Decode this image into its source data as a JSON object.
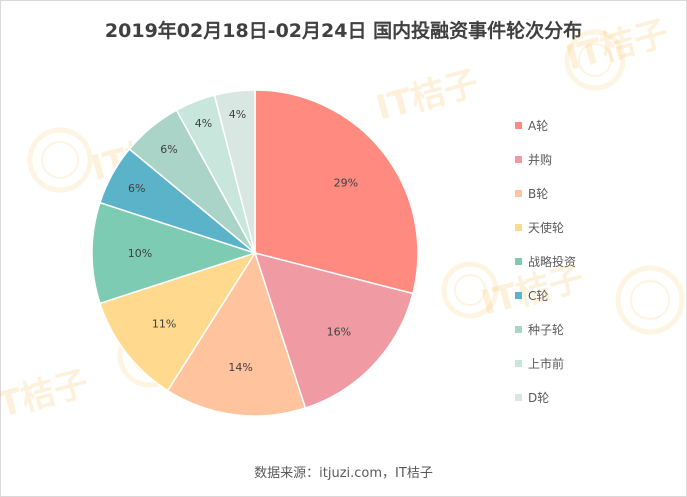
{
  "chart_data": {
    "type": "pie",
    "title": "2019年02月18日-02月24日  国内投融资事件轮次分布",
    "categories": [
      "A轮",
      "并购",
      "B轮",
      "天使轮",
      "战略投资",
      "C轮",
      "种子轮",
      "上市前",
      "D轮"
    ],
    "values": [
      29,
      16,
      14,
      11,
      10,
      6,
      6,
      4,
      4
    ],
    "value_labels": [
      "29%",
      "16%",
      "14%",
      "11%",
      "10%",
      "6%",
      "6%",
      "4%",
      "4%"
    ],
    "colors": [
      "#FF8A80",
      "#F09BA4",
      "#FFC39E",
      "#FFD98E",
      "#7ECBB4",
      "#5BB3C9",
      "#A9D4C7",
      "#C9E6DD",
      "#D9E7E2"
    ],
    "legend_position": "right",
    "start_angle_deg": 0,
    "direction": "clockwise"
  },
  "footer": {
    "source": "数据来源：itjuzi.com，IT桔子"
  },
  "watermark": {
    "text": "IT桔子"
  }
}
